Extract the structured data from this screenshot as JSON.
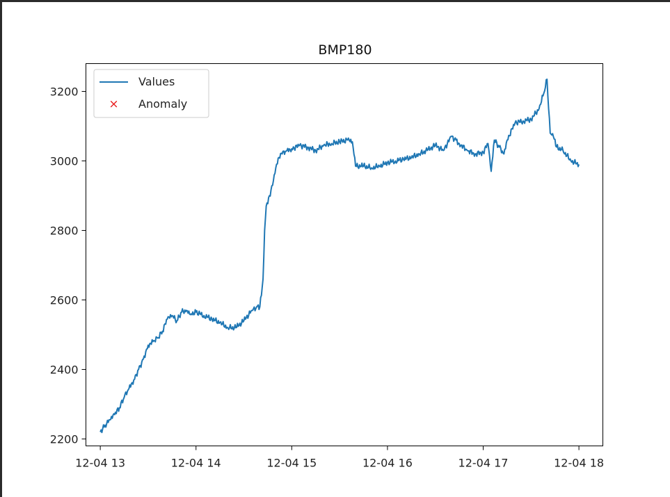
{
  "chart_data": {
    "type": "line",
    "title": "BMP180",
    "xlabel": "",
    "ylabel": "",
    "x_ticks": [
      "12-04 13",
      "12-04 14",
      "12-04 15",
      "12-04 16",
      "12-04 17",
      "12-04 18"
    ],
    "y_ticks": [
      "2200",
      "2400",
      "2600",
      "2800",
      "3000",
      "3200"
    ],
    "xlim": [
      "12-04 12:51",
      "12-04 18:15"
    ],
    "ylim": [
      2180,
      3280
    ],
    "grid": false,
    "legend_position": "upper-left",
    "legend": [
      "Values",
      "Anomaly"
    ],
    "series": [
      {
        "name": "Values",
        "color": "#1f77b4",
        "x": [
          "12-04 13:00",
          "12-04 13:03",
          "12-04 13:06",
          "12-04 13:09",
          "12-04 13:12",
          "12-04 13:15",
          "12-04 13:18",
          "12-04 13:21",
          "12-04 13:24",
          "12-04 13:27",
          "12-04 13:30",
          "12-04 13:33",
          "12-04 13:36",
          "12-04 13:39",
          "12-04 13:42",
          "12-04 13:45",
          "12-04 13:48",
          "12-04 13:51",
          "12-04 13:54",
          "12-04 13:57",
          "12-04 14:00",
          "12-04 14:05",
          "12-04 14:10",
          "12-04 14:15",
          "12-04 14:20",
          "12-04 14:25",
          "12-04 14:30",
          "12-04 14:35",
          "12-04 14:38",
          "12-04 14:40",
          "12-04 14:42",
          "12-04 14:43",
          "12-04 14:44",
          "12-04 14:46",
          "12-04 14:48",
          "12-04 14:50",
          "12-04 14:52",
          "12-04 14:54",
          "12-04 14:57",
          "12-04 15:00",
          "12-04 15:05",
          "12-04 15:10",
          "12-04 15:15",
          "12-04 15:20",
          "12-04 15:25",
          "12-04 15:30",
          "12-04 15:35",
          "12-04 15:38",
          "12-04 15:40",
          "12-04 15:45",
          "12-04 15:50",
          "12-04 15:55",
          "12-04 16:00",
          "12-04 16:05",
          "12-04 16:10",
          "12-04 16:15",
          "12-04 16:20",
          "12-04 16:25",
          "12-04 16:30",
          "12-04 16:35",
          "12-04 16:40",
          "12-04 16:43",
          "12-04 16:45",
          "12-04 16:50",
          "12-04 16:55",
          "12-04 17:00",
          "12-04 17:03",
          "12-04 17:05",
          "12-04 17:07",
          "12-04 17:10",
          "12-04 17:13",
          "12-04 17:15",
          "12-04 17:20",
          "12-04 17:25",
          "12-04 17:30",
          "12-04 17:35",
          "12-04 17:38",
          "12-04 17:40",
          "12-04 17:41",
          "12-04 17:42",
          "12-04 17:44",
          "12-04 17:46",
          "12-04 17:50",
          "12-04 17:55",
          "12-04 18:00"
        ],
        "y": [
          2220,
          2240,
          2255,
          2270,
          2290,
          2320,
          2345,
          2370,
          2400,
          2430,
          2470,
          2480,
          2490,
          2510,
          2545,
          2555,
          2540,
          2565,
          2570,
          2560,
          2565,
          2555,
          2545,
          2535,
          2520,
          2520,
          2540,
          2570,
          2580,
          2580,
          2660,
          2800,
          2870,
          2900,
          2930,
          2980,
          3010,
          3020,
          3030,
          3035,
          3045,
          3040,
          3030,
          3045,
          3050,
          3055,
          3060,
          3055,
          2985,
          2985,
          2980,
          2985,
          2995,
          3000,
          3005,
          3010,
          3020,
          3030,
          3045,
          3030,
          3070,
          3060,
          3050,
          3030,
          3020,
          3025,
          3050,
          2970,
          3060,
          3040,
          3020,
          3060,
          3110,
          3115,
          3120,
          3150,
          3195,
          3235,
          3150,
          3080,
          3070,
          3040,
          3030,
          3000,
          2990
        ]
      }
    ]
  }
}
